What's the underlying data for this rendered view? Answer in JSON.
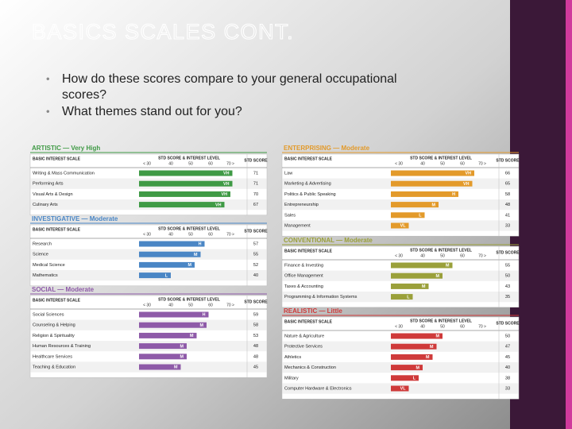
{
  "title": "BASICS SCALES CONT.",
  "bullets": [
    "How do these scores compare to your general occupational scores?",
    "What themes stand out for you?"
  ],
  "table_header": {
    "scale": "BASIC INTEREST SCALE",
    "level": "STD SCORE & INTEREST LEVEL",
    "ticks": [
      "< 30",
      "40",
      "50",
      "60",
      "70 >"
    ],
    "score": "STD SCORE"
  },
  "sections": [
    {
      "title": "ARTISTIC — Very High",
      "color": "#3f9a45",
      "rows": [
        {
          "label": "Writing & Mass Communication",
          "level": "VH",
          "score": 71
        },
        {
          "label": "Performing Arts",
          "level": "VH",
          "score": 71
        },
        {
          "label": "Visual Arts & Design",
          "level": "VH",
          "score": 70
        },
        {
          "label": "Culinary Arts",
          "level": "VH",
          "score": 67
        }
      ]
    },
    {
      "title": "INVESTIGATIVE — Moderate",
      "color": "#4a86c5",
      "rows": [
        {
          "label": "Research",
          "level": "H",
          "score": 57
        },
        {
          "label": "Science",
          "level": "M",
          "score": 55
        },
        {
          "label": "Medical Science",
          "level": "M",
          "score": 52
        },
        {
          "label": "Mathematics",
          "level": "L",
          "score": 40
        }
      ]
    },
    {
      "title": "SOCIAL — Moderate",
      "color": "#8e5aa8",
      "rows": [
        {
          "label": "Social Sciences",
          "level": "H",
          "score": 59
        },
        {
          "label": "Counseling & Helping",
          "level": "M",
          "score": 58
        },
        {
          "label": "Religion & Spirituality",
          "level": "M",
          "score": 53
        },
        {
          "label": "Human Resources & Training",
          "level": "M",
          "score": 48
        },
        {
          "label": "Healthcare Services",
          "level": "M",
          "score": 48
        },
        {
          "label": "Teaching & Education",
          "level": "M",
          "score": 45
        }
      ]
    },
    {
      "title": "ENTERPRISING — Moderate",
      "color": "#e39a2a",
      "rows": [
        {
          "label": "Law",
          "level": "VH",
          "score": 66
        },
        {
          "label": "Marketing & Advertising",
          "level": "VH",
          "score": 65
        },
        {
          "label": "Politics & Public Speaking",
          "level": "H",
          "score": 58
        },
        {
          "label": "Entrepreneurship",
          "level": "M",
          "score": 48
        },
        {
          "label": "Sales",
          "level": "L",
          "score": 41
        },
        {
          "label": "Management",
          "level": "VL",
          "score": 33
        }
      ]
    },
    {
      "title": "CONVENTIONAL — Moderate",
      "color": "#9aa03a",
      "rows": [
        {
          "label": "Finance & Investing",
          "level": "M",
          "score": 55
        },
        {
          "label": "Office Management",
          "level": "M",
          "score": 50
        },
        {
          "label": "Taxes & Accounting",
          "level": "M",
          "score": 43
        },
        {
          "label": "Programming & Information Systems",
          "level": "L",
          "score": 35
        }
      ]
    },
    {
      "title": "REALISTIC — Little",
      "color": "#cf3a3a",
      "rows": [
        {
          "label": "Nature & Agriculture",
          "level": "M",
          "score": 50
        },
        {
          "label": "Protective Services",
          "level": "M",
          "score": 47
        },
        {
          "label": "Athletics",
          "level": "M",
          "score": 45
        },
        {
          "label": "Mechanics & Construction",
          "level": "M",
          "score": 40
        },
        {
          "label": "Military",
          "level": "L",
          "score": 38
        },
        {
          "label": "Computer Hardware & Electronics",
          "level": "VL",
          "score": 33
        }
      ]
    }
  ]
}
